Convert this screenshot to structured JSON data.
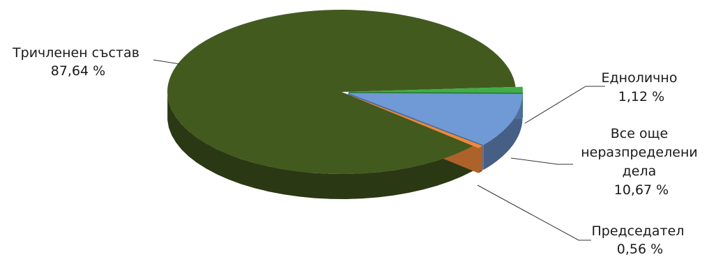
{
  "chart_data": {
    "type": "pie",
    "title": "",
    "slices": [
      {
        "label_lines": [
          "Тричленен състав"
        ],
        "value_text": "87,64 %",
        "value": 87.64,
        "color": "#435a1f"
      },
      {
        "label_lines": [
          "Еднолично"
        ],
        "value_text": "1,12 %",
        "value": 1.12,
        "color": "#3fae49"
      },
      {
        "label_lines": [
          "Все още",
          "неразпределени",
          "дела"
        ],
        "value_text": "10,67 %",
        "value": 10.67,
        "color": "#6f9ad6"
      },
      {
        "label_lines": [
          "Председател"
        ],
        "value_text": "0,56 %",
        "value": 0.56,
        "color": "#f0883a"
      }
    ]
  }
}
